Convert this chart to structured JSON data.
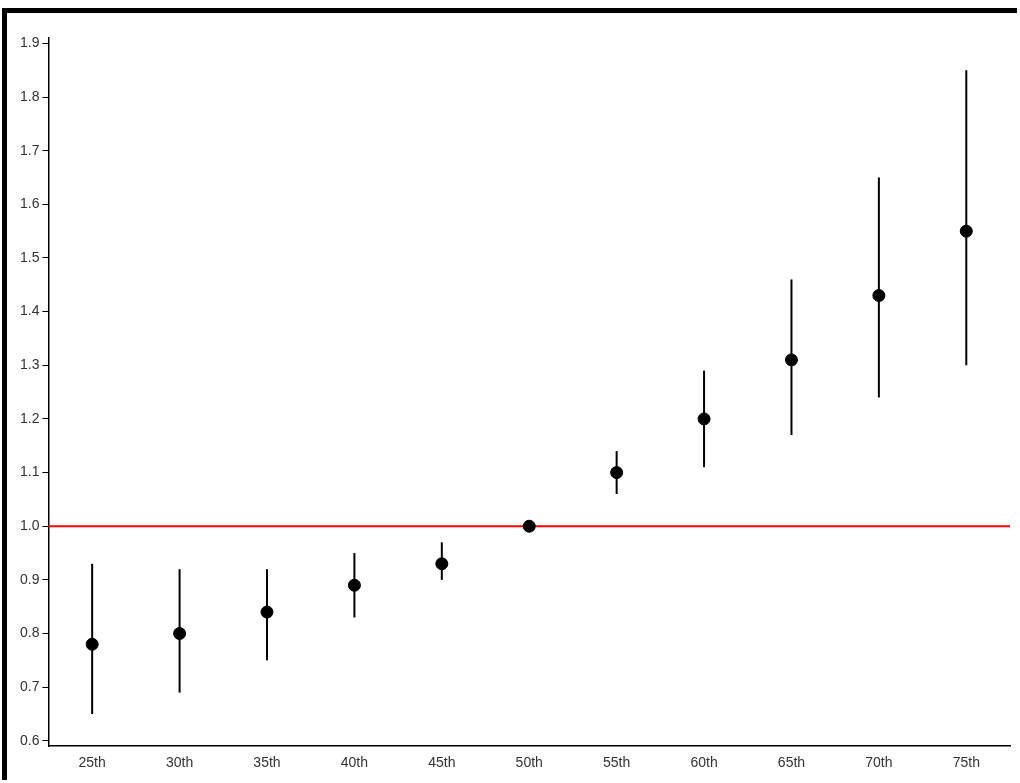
{
  "chart_data": {
    "type": "scatter",
    "categories": [
      "25th",
      "30th",
      "35th",
      "40th",
      "45th",
      "50th",
      "55th",
      "60th",
      "65th",
      "70th",
      "75th"
    ],
    "values": [
      0.78,
      0.8,
      0.84,
      0.89,
      0.93,
      1.0,
      1.1,
      1.2,
      1.31,
      1.43,
      1.55
    ],
    "errors": [
      [
        0.65,
        0.93
      ],
      [
        0.69,
        0.92
      ],
      [
        0.75,
        0.92
      ],
      [
        0.83,
        0.95
      ],
      [
        0.9,
        0.97
      ],
      null,
      [
        1.06,
        1.14
      ],
      [
        1.11,
        1.29
      ],
      [
        1.17,
        1.46
      ],
      [
        1.24,
        1.65
      ],
      [
        1.3,
        1.85
      ]
    ],
    "color": "#000000",
    "marker": "circle",
    "ylim": [
      0.59,
      1.91
    ],
    "yticks": [
      0.6,
      0.7,
      0.8,
      0.9,
      {
        "value": 1,
        "label": "1.0"
      },
      1.1,
      1.2,
      1.3,
      1.4,
      1.5,
      1.6,
      1.7,
      1.8,
      1.9
    ],
    "ref_lines": [
      {
        "axis": "y",
        "value": 1.0,
        "color": "#ff0000"
      }
    ],
    "grid": false,
    "legend": false
  }
}
